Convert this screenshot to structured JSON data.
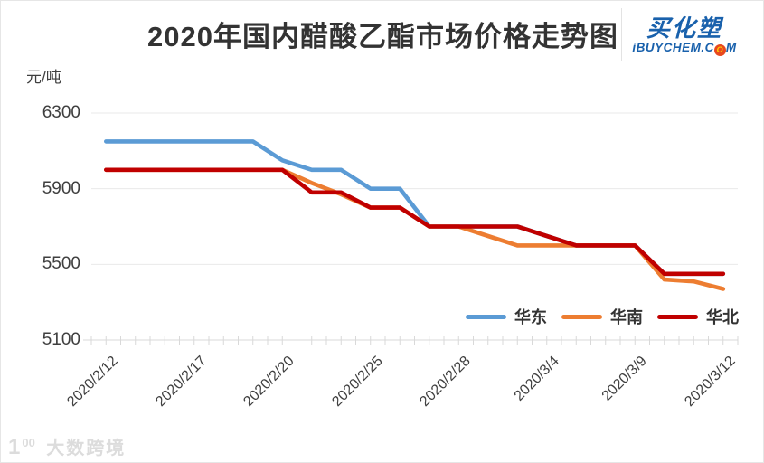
{
  "title": "2020年国内醋酸乙酯市场价格走势图",
  "brand": {
    "name": "买化塑",
    "site_prefix": "iBUYCHEM.C",
    "site_globe": "O",
    "site_suffix": "M",
    "color": "#1961ac"
  },
  "watermark": {
    "mark_digit": "1",
    "mark_sup": "00",
    "text": "大数跨境"
  },
  "chart_data": {
    "type": "line",
    "title": "2020年国内醋酸乙酯市场价格走势图",
    "ylabel_unit": "元/吨",
    "xlabel": "",
    "ylim": [
      5100,
      6300
    ],
    "y_ticks": [
      6300,
      5900,
      5500,
      5100
    ],
    "grid": "horizontal-on",
    "legend_position": "bottom-right-inside",
    "categories": [
      "2020/2/12",
      "2020/2/13",
      "2020/2/14",
      "2020/2/17",
      "2020/2/18",
      "2020/2/19",
      "2020/2/20",
      "2020/2/21",
      "2020/2/24",
      "2020/2/25",
      "2020/2/26",
      "2020/2/27",
      "2020/2/28",
      "2020/3/2",
      "2020/3/3",
      "2020/3/4",
      "2020/3/5",
      "2020/3/6",
      "2020/3/9",
      "2020/3/10",
      "2020/3/11",
      "2020/3/12"
    ],
    "x_tick_label_indices": [
      0,
      3,
      6,
      9,
      12,
      15,
      18,
      21
    ],
    "x_tick_labels": [
      "2020/2/12",
      "2020/2/17",
      "2020/2/20",
      "2020/2/25",
      "2020/2/28",
      "2020/3/4",
      "2020/3/9",
      "2020/3/12"
    ],
    "series": [
      {
        "name": "华东",
        "color": "#5B9BD5",
        "values": [
          6150,
          6150,
          6150,
          6150,
          6150,
          6150,
          6050,
          6000,
          6000,
          5900,
          5900,
          5700,
          5700,
          5700,
          5700,
          5650,
          5600,
          5600,
          5600,
          5450,
          5450,
          5450
        ]
      },
      {
        "name": "华南",
        "color": "#ED7D31",
        "values": [
          6000,
          6000,
          6000,
          6000,
          6000,
          6000,
          6000,
          5930,
          5870,
          5800,
          5800,
          5700,
          5700,
          5650,
          5600,
          5600,
          5600,
          5600,
          5600,
          5420,
          5410,
          5370
        ]
      },
      {
        "name": "华北",
        "color": "#C00000",
        "values": [
          6000,
          6000,
          6000,
          6000,
          6000,
          6000,
          6000,
          5880,
          5880,
          5800,
          5800,
          5700,
          5700,
          5700,
          5700,
          5650,
          5600,
          5600,
          5600,
          5450,
          5450,
          5450
        ]
      }
    ],
    "colors": {
      "gridline": "#e9e9e9",
      "axis": "#d9d9d9",
      "tick_text": "#3f3f3f"
    }
  }
}
